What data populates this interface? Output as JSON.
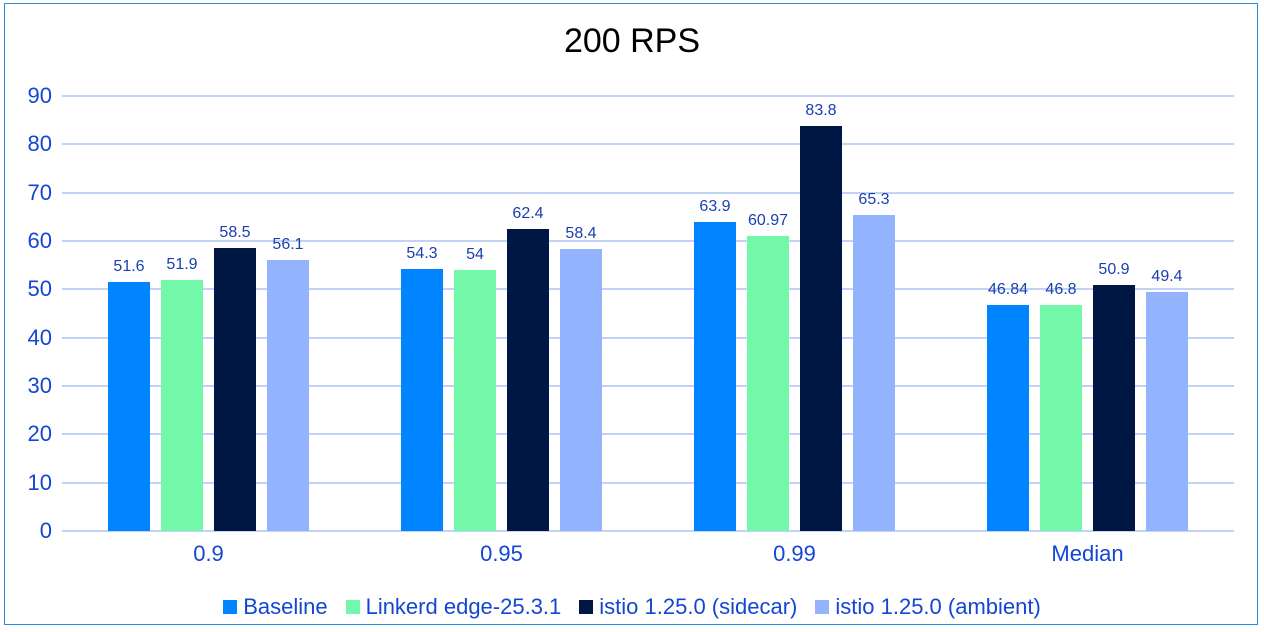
{
  "chart_data": {
    "type": "bar",
    "title": "200 RPS",
    "xlabel": "",
    "ylabel": "",
    "ylim": [
      0,
      90
    ],
    "yticks": [
      0,
      10,
      20,
      30,
      40,
      50,
      60,
      70,
      80,
      90
    ],
    "grid": true,
    "legend_position": "bottom",
    "categories": [
      "0.9",
      "0.95",
      "0.99",
      "Median"
    ],
    "series": [
      {
        "name": "Baseline",
        "color": "#0084ff",
        "values": [
          51.6,
          54.3,
          63.9,
          46.84
        ]
      },
      {
        "name": "Linkerd edge-25.3.1",
        "color": "#72f8a8",
        "values": [
          51.9,
          54,
          60.97,
          46.8
        ]
      },
      {
        "name": "istio 1.25.0 (sidecar)",
        "color": "#001643",
        "values": [
          58.5,
          62.4,
          83.8,
          50.9
        ]
      },
      {
        "name": "istio 1.25.0 (ambient)",
        "color": "#94b3ff",
        "values": [
          56.1,
          58.4,
          65.3,
          49.4
        ]
      }
    ]
  }
}
